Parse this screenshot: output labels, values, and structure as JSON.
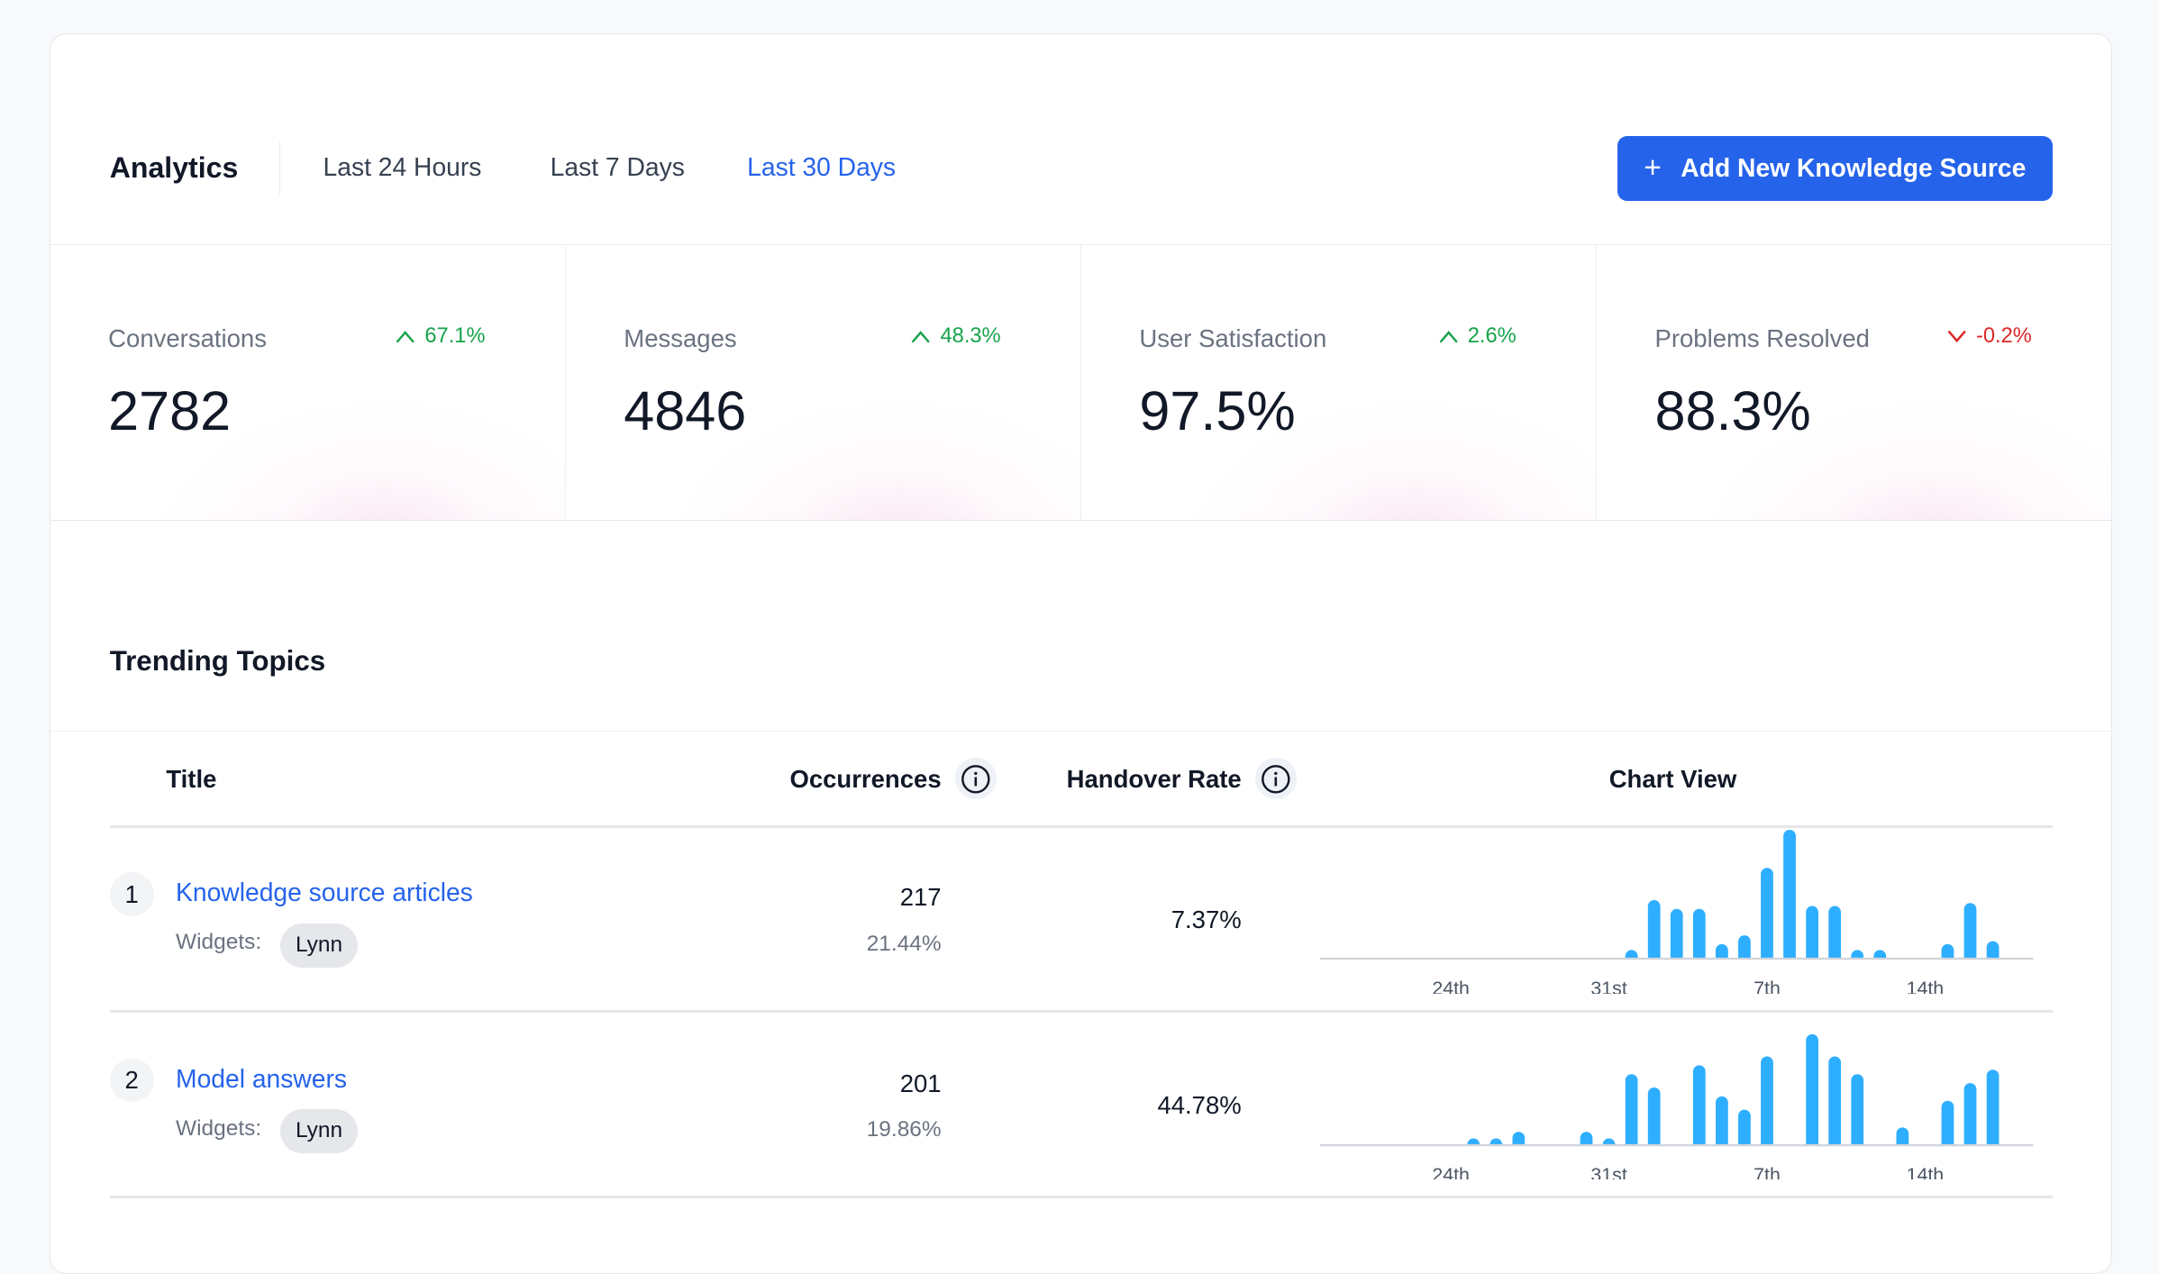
{
  "header": {
    "title": "Analytics",
    "tabs": [
      {
        "label": "Last 24 Hours",
        "active": false
      },
      {
        "label": "Last 7 Days",
        "active": false
      },
      {
        "label": "Last 30 Days",
        "active": true
      }
    ],
    "add_button": {
      "icon": "plus-icon",
      "label": "Add New Knowledge Source"
    }
  },
  "stats": [
    {
      "label": "Conversations",
      "value": "2782",
      "change": "67.1%",
      "direction": "up"
    },
    {
      "label": "Messages",
      "value": "4846",
      "change": "48.3%",
      "direction": "up"
    },
    {
      "label": "User Satisfaction",
      "value": "97.5%",
      "change": "2.6%",
      "direction": "up"
    },
    {
      "label": "Problems Resolved",
      "value": "88.3%",
      "change": "-0.2%",
      "direction": "down"
    }
  ],
  "colors": {
    "accent": "#2563eb",
    "up": "#16a34a",
    "down": "#dc2626",
    "bar": "#2eaeff"
  },
  "trending": {
    "title": "Trending Topics",
    "columns": {
      "title": "Title",
      "occurrences": "Occurrences",
      "handover": "Handover Rate",
      "chart": "Chart View"
    },
    "rows": [
      {
        "rank": "1",
        "title": "Knowledge source articles",
        "widgets_label": "Widgets:",
        "widget": "Lynn",
        "occurrences": "217",
        "share": "21.44%",
        "handover": "7.37%"
      },
      {
        "rank": "2",
        "title": "Model answers",
        "widgets_label": "Widgets:",
        "widget": "Lynn",
        "occurrences": "201",
        "share": "19.86%",
        "handover": "44.78%"
      }
    ]
  },
  "chart_data": [
    {
      "type": "bar",
      "x": [
        19,
        20,
        21,
        22,
        23,
        24,
        25,
        26,
        27,
        28,
        29,
        30,
        31,
        1,
        2,
        3,
        4,
        5,
        6,
        7,
        8,
        9,
        10,
        11,
        12,
        13,
        14,
        15,
        16,
        17
      ],
      "values": [
        0,
        0,
        0,
        0,
        0,
        0,
        0,
        0,
        0,
        0,
        0,
        0,
        0,
        3,
        20,
        17,
        17,
        5,
        8,
        31,
        44,
        18,
        18,
        3,
        3,
        0,
        0,
        5,
        19,
        6
      ],
      "tick_labels": [
        "24th",
        "31st",
        "7th",
        "14th"
      ],
      "ylim": [
        0,
        47
      ],
      "grid": false
    },
    {
      "type": "bar",
      "x": [
        19,
        20,
        21,
        22,
        23,
        24,
        25,
        26,
        27,
        28,
        29,
        30,
        31,
        1,
        2,
        3,
        4,
        5,
        6,
        7,
        8,
        9,
        10,
        11,
        12,
        13,
        14,
        15,
        16,
        17
      ],
      "values": [
        0,
        0,
        0,
        0,
        0,
        0,
        1,
        1,
        3,
        0,
        0,
        3,
        1,
        16,
        13,
        0,
        18,
        11,
        8,
        20,
        0,
        25,
        20,
        16,
        0,
        4,
        0,
        10,
        14,
        17
      ],
      "tick_labels": [
        "24th",
        "31st",
        "7th",
        "14th"
      ],
      "ylim": [
        0,
        31
      ],
      "grid": false
    }
  ]
}
